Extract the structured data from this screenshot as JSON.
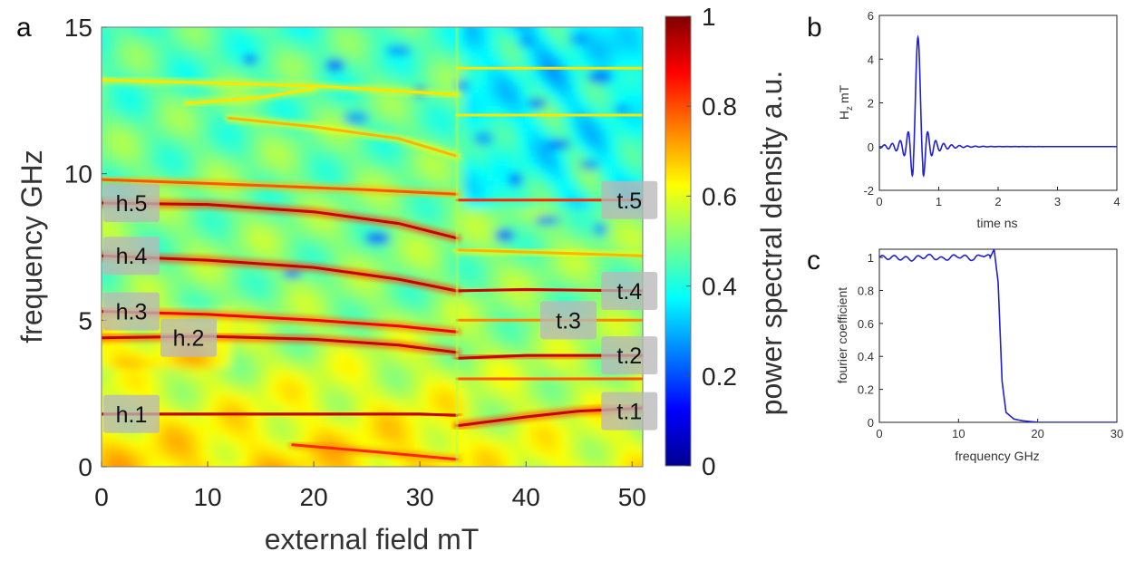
{
  "chart_data": [
    {
      "panel": "a",
      "type": "heatmap",
      "xlabel": "external field mT",
      "ylabel": "frequency GHz",
      "colorbar_label": "power spectral density a.u.",
      "xlim": [
        0,
        51
      ],
      "ylim": [
        0,
        15
      ],
      "xticks": [
        0,
        10,
        20,
        30,
        40,
        50
      ],
      "yticks": [
        0,
        5,
        10,
        15
      ],
      "colorbar_ticks": [
        0,
        0.2,
        0.4,
        0.6,
        0.8,
        1
      ],
      "colorbar_range": [
        0,
        1
      ],
      "colormap": "jet",
      "field_discontinuity_mT": 33.5,
      "mode_labels_left": [
        {
          "label": "h.1",
          "field": 0,
          "frequency": 1.8
        },
        {
          "label": "h.2",
          "field": 0,
          "frequency": 4.4
        },
        {
          "label": "h.3",
          "field": 0,
          "frequency": 5.3
        },
        {
          "label": "h.4",
          "field": 0,
          "frequency": 7.2
        },
        {
          "label": "h.5",
          "field": 0,
          "frequency": 9.0
        }
      ],
      "mode_labels_right": [
        {
          "label": "t.1",
          "field": 50,
          "frequency": 1.9
        },
        {
          "label": "t.2",
          "field": 50,
          "frequency": 3.8
        },
        {
          "label": "t.3",
          "field": 44,
          "frequency": 5.0
        },
        {
          "label": "t.4",
          "field": 50,
          "frequency": 6.0
        },
        {
          "label": "t.5",
          "field": 50,
          "frequency": 9.1
        }
      ],
      "ridges": [
        {
          "name": "h.5",
          "points": [
            [
              0,
              9.0
            ],
            [
              10,
              8.95
            ],
            [
              20,
              8.7
            ],
            [
              28,
              8.3
            ],
            [
              33.5,
              7.8
            ]
          ],
          "intensity": 1.0
        },
        {
          "name": "h.5 upper",
          "points": [
            [
              0,
              9.8
            ],
            [
              15,
              9.6
            ],
            [
              25,
              9.45
            ],
            [
              33.5,
              9.3
            ]
          ],
          "intensity": 0.85
        },
        {
          "name": "h.4",
          "points": [
            [
              0,
              7.2
            ],
            [
              10,
              7.05
            ],
            [
              20,
              6.8
            ],
            [
              28,
              6.4
            ],
            [
              33.5,
              6.0
            ]
          ],
          "intensity": 1.0
        },
        {
          "name": "h.3",
          "points": [
            [
              0,
              5.3
            ],
            [
              10,
              5.2
            ],
            [
              20,
              5.0
            ],
            [
              28,
              4.8
            ],
            [
              33.5,
              4.6
            ]
          ],
          "intensity": 0.95
        },
        {
          "name": "h.2",
          "points": [
            [
              0,
              4.4
            ],
            [
              10,
              4.45
            ],
            [
              20,
              4.35
            ],
            [
              28,
              4.15
            ],
            [
              33.5,
              3.9
            ]
          ],
          "intensity": 1.0
        },
        {
          "name": "h.1",
          "points": [
            [
              0,
              1.8
            ],
            [
              15,
              1.8
            ],
            [
              30,
              1.8
            ],
            [
              33.5,
              1.75
            ]
          ],
          "intensity": 1.0
        },
        {
          "name": "low branch",
          "points": [
            [
              18,
              0.75
            ],
            [
              26,
              0.5
            ],
            [
              33.5,
              0.25
            ]
          ],
          "intensity": 0.9
        },
        {
          "name": "upper arc 1",
          "points": [
            [
              12,
              11.9
            ],
            [
              20,
              11.6
            ],
            [
              28,
              11.2
            ],
            [
              33.5,
              10.6
            ]
          ],
          "intensity": 0.75
        },
        {
          "name": "upper arc 2",
          "points": [
            [
              8,
              12.4
            ],
            [
              15,
              12.6
            ],
            [
              20,
              12.9
            ]
          ],
          "intensity": 0.7
        },
        {
          "name": "upper arc 3",
          "points": [
            [
              0,
              13.2
            ],
            [
              10,
              13.1
            ],
            [
              20,
              13.0
            ],
            [
              33.5,
              12.7
            ]
          ],
          "intensity": 0.7
        },
        {
          "name": "t.1",
          "points": [
            [
              33.5,
              1.4
            ],
            [
              40,
              1.7
            ],
            [
              45,
              1.9
            ],
            [
              51,
              2.0
            ]
          ],
          "intensity": 1.0
        },
        {
          "name": "t.2",
          "points": [
            [
              33.5,
              3.7
            ],
            [
              40,
              3.8
            ],
            [
              51,
              3.8
            ]
          ],
          "intensity": 1.0
        },
        {
          "name": "t.2 lower",
          "points": [
            [
              33.5,
              3.0
            ],
            [
              51,
              3.0
            ]
          ],
          "intensity": 0.85
        },
        {
          "name": "t.3",
          "points": [
            [
              33.5,
              5.0
            ],
            [
              44,
              5.0
            ],
            [
              51,
              5.0
            ]
          ],
          "intensity": 0.8
        },
        {
          "name": "t.4",
          "points": [
            [
              33.5,
              6.0
            ],
            [
              40,
              6.05
            ],
            [
              51,
              6.0
            ]
          ],
          "intensity": 1.0
        },
        {
          "name": "t.4 upper",
          "points": [
            [
              33.5,
              7.4
            ],
            [
              51,
              7.2
            ]
          ],
          "intensity": 0.75
        },
        {
          "name": "t.5",
          "points": [
            [
              33.5,
              9.1
            ],
            [
              51,
              9.1
            ]
          ],
          "intensity": 0.9
        },
        {
          "name": "t upper 1",
          "points": [
            [
              33.5,
              12.0
            ],
            [
              51,
              12.0
            ]
          ],
          "intensity": 0.7
        },
        {
          "name": "t upper 2",
          "points": [
            [
              33.5,
              13.6
            ],
            [
              51,
              13.6
            ]
          ],
          "intensity": 0.7
        }
      ]
    },
    {
      "panel": "b",
      "type": "line",
      "xlabel": "time ns",
      "ylabel": "H",
      "ylabel_subscript": "z",
      "ylabel_unit": "mT",
      "xlim": [
        0,
        4
      ],
      "ylim": [
        -2,
        6
      ],
      "xticks": [
        0,
        1,
        2,
        3,
        4
      ],
      "yticks": [
        -2,
        0,
        2,
        4,
        6
      ],
      "pulse": {
        "center_ns": 0.65,
        "peak_mT": 5.0,
        "min_mT": -1.1,
        "cutoff_GHz": 15
      },
      "color": "#1f1fd6"
    },
    {
      "panel": "c",
      "type": "line",
      "xlabel": "frequency GHz",
      "ylabel": "fourier coefficient",
      "xlim": [
        0,
        30
      ],
      "ylim": [
        0,
        1.05
      ],
      "xticks": [
        0,
        10,
        20,
        30
      ],
      "yticks": [
        0,
        0.2,
        0.4,
        0.6,
        0.8,
        1
      ],
      "x": [
        0,
        2,
        4,
        6,
        8,
        10,
        12,
        13,
        14,
        14.5,
        15,
        15.5,
        16,
        17,
        18,
        20,
        25,
        30
      ],
      "y": [
        1.0,
        1.0,
        0.99,
        1.01,
        0.99,
        1.01,
        0.99,
        1.02,
        1.0,
        1.05,
        0.85,
        0.25,
        0.06,
        0.02,
        0.01,
        0.0,
        0.0,
        0.0
      ],
      "color": "#1f1fd6"
    }
  ],
  "panels": {
    "a": {
      "letter": "a"
    },
    "b": {
      "letter": "b"
    },
    "c": {
      "letter": "c"
    }
  }
}
